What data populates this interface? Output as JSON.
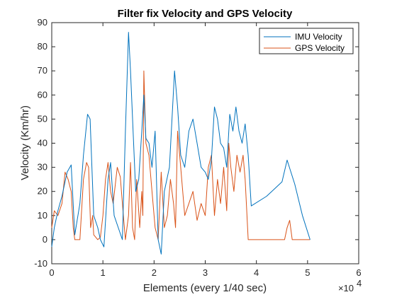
{
  "chart_data": {
    "type": "line",
    "title": "Filter fix Velocity and GPS Velocity",
    "xlabel": "Elements (every 1/40 sec)",
    "ylabel": "Velocity (Km/hr)",
    "x_exponent_label": "×10",
    "x_exponent_power": "4",
    "xlim": [
      0,
      6
    ],
    "ylim": [
      -10,
      90
    ],
    "xticks": [
      0,
      1,
      2,
      3,
      4,
      5,
      6
    ],
    "yticks": [
      -10,
      0,
      10,
      20,
      30,
      40,
      50,
      60,
      70,
      80,
      90
    ],
    "legend_position": "top-right",
    "series": [
      {
        "name": "IMU Velocity",
        "color": "#0072BD",
        "x": [
          0,
          0.05,
          0.12,
          0.2,
          0.3,
          0.38,
          0.45,
          0.55,
          0.62,
          0.7,
          0.75,
          0.82,
          0.9,
          0.95,
          1.02,
          1.1,
          1.15,
          1.22,
          1.3,
          1.38,
          1.44,
          1.5,
          1.54,
          1.58,
          1.64,
          1.7,
          1.76,
          1.8,
          1.84,
          1.9,
          1.96,
          2.02,
          2.08,
          2.14,
          2.2,
          2.3,
          2.4,
          2.46,
          2.52,
          2.6,
          2.68,
          2.76,
          2.84,
          2.92,
          3.0,
          3.06,
          3.12,
          3.18,
          3.24,
          3.3,
          3.36,
          3.42,
          3.48,
          3.54,
          3.6,
          3.66,
          3.72,
          3.78,
          3.84,
          3.9,
          4.2,
          4.5,
          4.6,
          4.66,
          4.75,
          4.9,
          5.05
        ],
        "y": [
          -3,
          5,
          12,
          18,
          28,
          31,
          2,
          15,
          35,
          52,
          50,
          10,
          5,
          0,
          -3,
          25,
          32,
          10,
          5,
          0,
          45,
          86,
          70,
          50,
          20,
          25,
          45,
          60,
          42,
          40,
          30,
          45,
          0,
          -6,
          20,
          30,
          70,
          55,
          35,
          30,
          45,
          50,
          40,
          30,
          28,
          25,
          33,
          55,
          50,
          40,
          38,
          30,
          52,
          45,
          55,
          45,
          40,
          48,
          35,
          14,
          18,
          24,
          33,
          29,
          23,
          10,
          0
        ]
      },
      {
        "name": "GPS Velocity",
        "color": "#D95319",
        "x": [
          0,
          0.05,
          0.12,
          0.2,
          0.26,
          0.32,
          0.38,
          0.42,
          0.45,
          0.55,
          0.62,
          0.68,
          0.72,
          0.76,
          0.8,
          0.82,
          0.9,
          0.95,
          1.0,
          1.05,
          1.1,
          1.15,
          1.2,
          1.28,
          1.34,
          1.4,
          1.44,
          1.5,
          1.54,
          1.58,
          1.62,
          1.66,
          1.72,
          1.76,
          1.78,
          1.8,
          1.84,
          1.9,
          1.96,
          2.02,
          2.08,
          2.14,
          2.2,
          2.26,
          2.32,
          2.38,
          2.42,
          2.46,
          2.52,
          2.6,
          2.68,
          2.76,
          2.84,
          2.92,
          3.0,
          3.06,
          3.12,
          3.18,
          3.24,
          3.3,
          3.36,
          3.42,
          3.46,
          3.5,
          3.56,
          3.62,
          3.68,
          3.74,
          3.78,
          3.84,
          3.9,
          4.2,
          4.5,
          4.55,
          4.6,
          4.65,
          4.7,
          4.9,
          5.05
        ],
        "y": [
          5,
          12,
          10,
          15,
          28,
          25,
          20,
          5,
          0,
          0,
          25,
          32,
          30,
          5,
          10,
          2,
          0,
          1,
          10,
          25,
          32,
          20,
          15,
          30,
          26,
          10,
          0,
          10,
          32,
          5,
          0,
          25,
          5,
          20,
          10,
          70,
          40,
          35,
          20,
          5,
          0,
          28,
          5,
          10,
          25,
          15,
          5,
          45,
          30,
          10,
          15,
          20,
          8,
          15,
          10,
          30,
          35,
          10,
          25,
          15,
          30,
          12,
          40,
          30,
          20,
          35,
          28,
          35,
          25,
          0,
          0,
          0,
          0,
          0,
          5,
          8,
          0,
          0,
          0
        ]
      }
    ]
  }
}
